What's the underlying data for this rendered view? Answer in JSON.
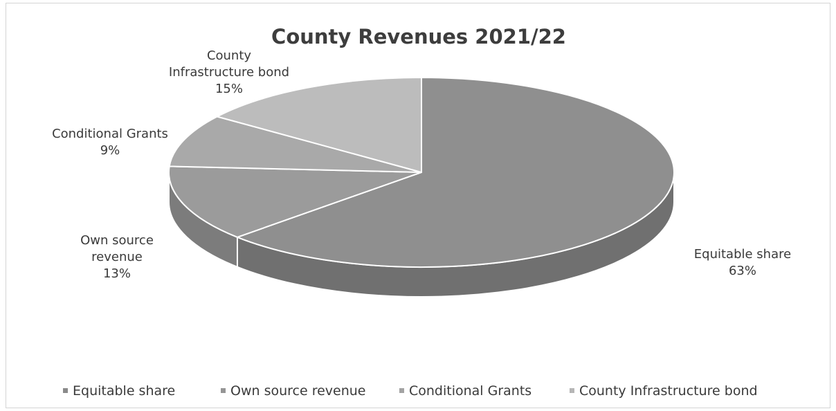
{
  "chart_data": {
    "type": "pie",
    "title": "County Revenues 2021/22",
    "categories": [
      "Equitable share",
      "Own source revenue",
      "Conditional Grants",
      "County Infrastructure bond"
    ],
    "values": [
      63,
      13,
      9,
      15
    ],
    "unit": "%",
    "labels": [
      {
        "lines": [
          "Equitable share",
          "63%"
        ]
      },
      {
        "lines": [
          "Own source",
          "revenue",
          "13%"
        ]
      },
      {
        "lines": [
          "Conditional Grants",
          "9%"
        ]
      },
      {
        "lines": [
          "County",
          "Infrastructure bond",
          "15%"
        ]
      }
    ],
    "colors": [
      "#8f8f8f",
      "#9b9b9b",
      "#a9a9a9",
      "#bcbcbc"
    ],
    "side_colors": [
      "#707070",
      "#7c7c7c",
      "#888888",
      "#999999"
    ],
    "legend_position": "bottom",
    "legend_marker_colors": [
      "#8a8a8a",
      "#959595",
      "#a3a3a3",
      "#b6b6b6"
    ],
    "three_d": true
  }
}
